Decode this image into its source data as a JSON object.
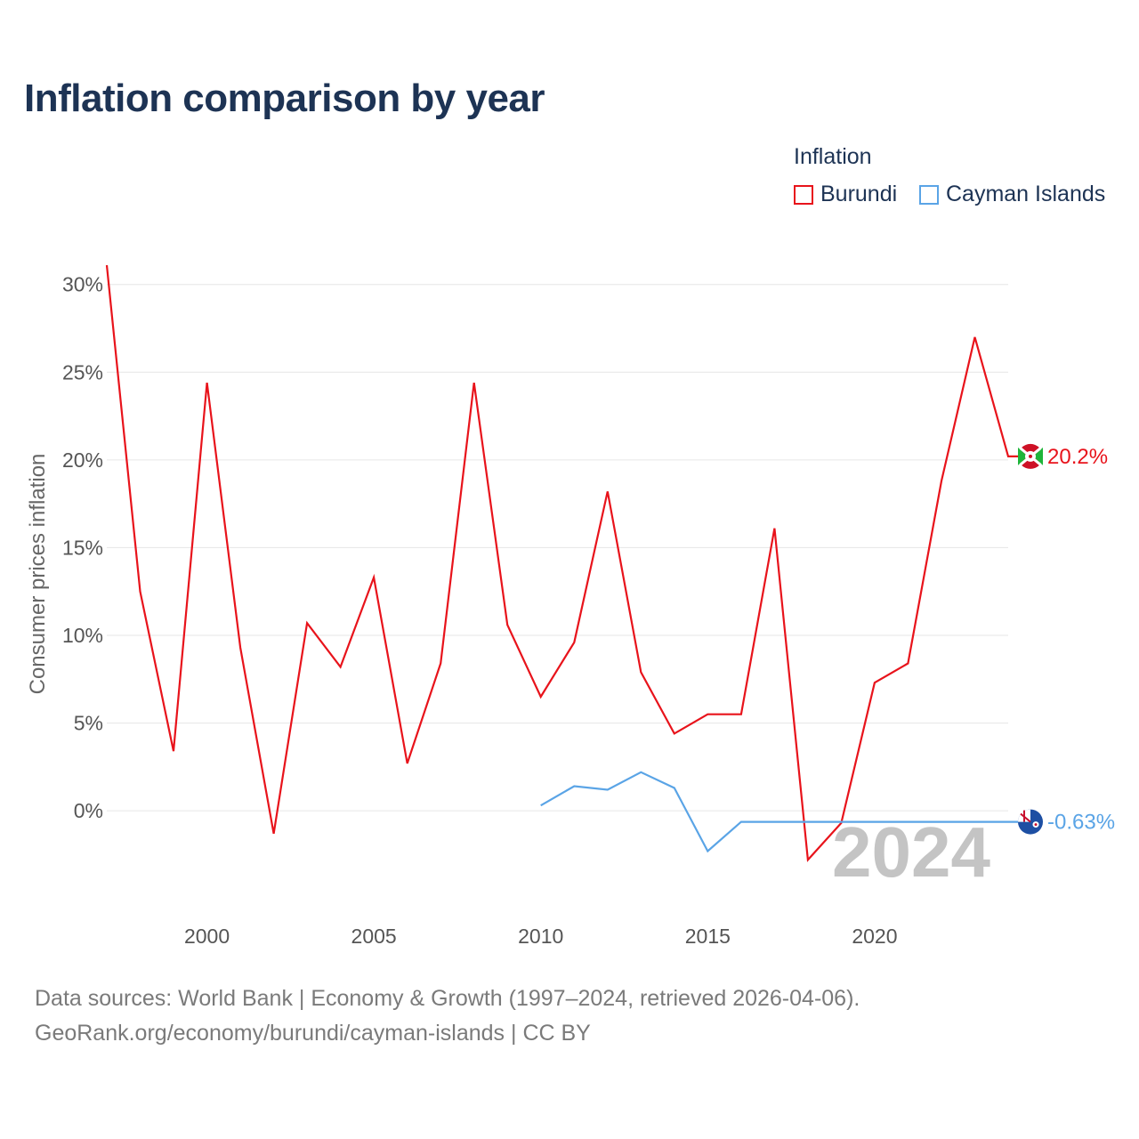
{
  "title": "Inflation comparison by year",
  "legend": {
    "title": "Inflation",
    "items": [
      {
        "name": "Burundi",
        "color": "#e8131b"
      },
      {
        "name": "Cayman Islands",
        "color": "#5aa4e6"
      }
    ]
  },
  "footer": {
    "line1": "Data sources: World Bank | Economy & Growth (1997–2024, retrieved 2026-04-06).",
    "line2": "GeoRank.org/economy/burundi/cayman-islands | CC BY"
  },
  "chart_data": {
    "type": "line",
    "title": "Inflation comparison by year",
    "xlabel": "",
    "ylabel": "Consumer prices inflation",
    "xlim": [
      1997,
      2024
    ],
    "ylim": [
      -4,
      31
    ],
    "x_ticks": [
      2000,
      2005,
      2010,
      2015,
      2020
    ],
    "x_tick_labels": [
      "2000",
      "2005",
      "2010",
      "2015",
      "2020"
    ],
    "y_ticks": [
      0,
      5,
      10,
      15,
      20,
      25,
      30
    ],
    "y_tick_labels": [
      "0%",
      "5%",
      "10%",
      "15%",
      "20%",
      "25%",
      "30%"
    ],
    "grid": true,
    "legend_position": "top-right",
    "watermark_year": "2024",
    "series": [
      {
        "name": "Burundi",
        "color": "#e8131b",
        "end_label": "20.2%",
        "x": [
          1997,
          1998,
          1999,
          2000,
          2001,
          2002,
          2003,
          2004,
          2005,
          2006,
          2007,
          2008,
          2009,
          2010,
          2011,
          2012,
          2013,
          2014,
          2015,
          2016,
          2017,
          2018,
          2019,
          2020,
          2021,
          2022,
          2023,
          2024
        ],
        "values": [
          31.1,
          12.5,
          3.4,
          24.4,
          9.3,
          -1.3,
          10.7,
          8.2,
          13.3,
          2.7,
          8.4,
          24.4,
          10.6,
          6.5,
          9.6,
          18.2,
          7.9,
          4.4,
          5.5,
          5.5,
          16.1,
          -2.8,
          -0.7,
          7.3,
          8.4,
          18.8,
          27.0,
          20.2
        ]
      },
      {
        "name": "Cayman Islands",
        "color": "#5aa4e6",
        "end_label": "-0.63%",
        "x": [
          2010,
          2011,
          2012,
          2013,
          2014,
          2015,
          2016,
          2017,
          2018,
          2019,
          2020,
          2021,
          2022,
          2023,
          2024
        ],
        "values": [
          0.3,
          1.4,
          1.2,
          2.2,
          1.3,
          -2.3,
          -0.63,
          -0.63,
          -0.63,
          -0.63,
          -0.63,
          -0.63,
          -0.63,
          -0.63,
          -0.63
        ]
      }
    ]
  }
}
